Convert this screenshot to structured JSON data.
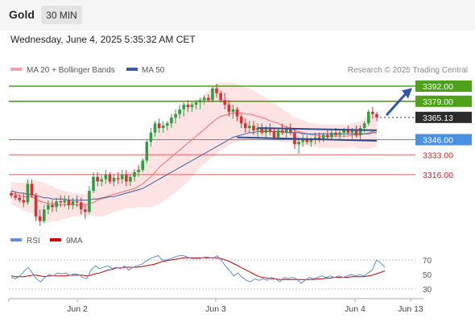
{
  "header": {
    "symbol": "Gold",
    "timeframe": "30 MIN",
    "timestamp": "Wednesday, June 4, 2025 5:35:32 AM CET"
  },
  "legend": {
    "ma20_label": "MA 20 + Bollinger Bands",
    "ma50_label": "MA 50",
    "credit": "Research © 2025 Trading Central"
  },
  "colors": {
    "candle_up": "#2e9e3e",
    "candle_down": "#d93030",
    "ma20": "#f26d6d",
    "ma50": "#35609e",
    "bollinger_fill": "#fcd9d9",
    "resistance": "#4ea21a",
    "pivot": "#4a8ee0",
    "support": "#e06060",
    "channel": "#2d4d8f",
    "rsi": "#5b8fd9",
    "rsi_ma": "#cc0000"
  },
  "chart_data": [
    {
      "type": "candlestick",
      "ylim": [
        3240,
        3400
      ],
      "x_ticks": [
        "Jun 2",
        "Jun 3",
        "Jun 4",
        "Jun 13"
      ],
      "last_price": 3365.13,
      "price_labels": [
        "3392.00",
        "3379.00",
        "3365.13",
        "3346.00",
        "3333.00",
        "3316.00"
      ],
      "levels": [
        {
          "name": "resistance-2",
          "value": 3392.0,
          "kind": "resistance",
          "label": "3392.00"
        },
        {
          "name": "resistance-1",
          "value": 3379.0,
          "kind": "resistance",
          "label": "3379.00"
        },
        {
          "name": "pivot",
          "value": 3346.0,
          "kind": "pivot",
          "label": "3346.00"
        },
        {
          "name": "support-1",
          "value": 3333.0,
          "kind": "support",
          "label": "3333.00"
        },
        {
          "name": "support-2",
          "value": 3316.0,
          "kind": "support",
          "label": "3316.00"
        }
      ],
      "ohlc": [
        [
          3300,
          3302,
          3296,
          3298
        ],
        [
          3298,
          3301,
          3294,
          3296
        ],
        [
          3296,
          3299,
          3292,
          3294
        ],
        [
          3294,
          3300,
          3288,
          3292
        ],
        [
          3292,
          3312,
          3290,
          3308
        ],
        [
          3308,
          3312,
          3296,
          3298
        ],
        [
          3298,
          3300,
          3276,
          3280
        ],
        [
          3280,
          3286,
          3272,
          3276
        ],
        [
          3276,
          3290,
          3274,
          3286
        ],
        [
          3286,
          3294,
          3282,
          3290
        ],
        [
          3290,
          3294,
          3284,
          3288
        ],
        [
          3288,
          3296,
          3284,
          3293
        ],
        [
          3293,
          3298,
          3288,
          3292
        ],
        [
          3292,
          3298,
          3288,
          3294
        ],
        [
          3294,
          3298,
          3286,
          3290
        ],
        [
          3290,
          3296,
          3286,
          3293
        ],
        [
          3293,
          3298,
          3288,
          3292
        ],
        [
          3292,
          3296,
          3282,
          3286
        ],
        [
          3286,
          3290,
          3278,
          3284
        ],
        [
          3284,
          3306,
          3282,
          3302
        ],
        [
          3302,
          3318,
          3300,
          3314
        ],
        [
          3314,
          3318,
          3306,
          3310
        ],
        [
          3310,
          3316,
          3306,
          3312
        ],
        [
          3312,
          3320,
          3308,
          3316
        ],
        [
          3316,
          3318,
          3308,
          3310
        ],
        [
          3310,
          3316,
          3306,
          3313
        ],
        [
          3313,
          3318,
          3308,
          3312
        ],
        [
          3312,
          3320,
          3308,
          3316
        ],
        [
          3316,
          3320,
          3306,
          3310
        ],
        [
          3310,
          3316,
          3306,
          3314
        ],
        [
          3314,
          3320,
          3310,
          3318
        ],
        [
          3318,
          3324,
          3314,
          3320
        ],
        [
          3320,
          3330,
          3318,
          3328
        ],
        [
          3328,
          3346,
          3326,
          3344
        ],
        [
          3344,
          3356,
          3340,
          3352
        ],
        [
          3352,
          3362,
          3348,
          3360
        ],
        [
          3360,
          3364,
          3352,
          3356
        ],
        [
          3356,
          3362,
          3352,
          3358
        ],
        [
          3358,
          3362,
          3354,
          3360
        ],
        [
          3360,
          3368,
          3356,
          3365
        ],
        [
          3365,
          3372,
          3360,
          3368
        ],
        [
          3368,
          3376,
          3364,
          3372
        ],
        [
          3372,
          3378,
          3366,
          3376
        ],
        [
          3376,
          3380,
          3370,
          3374
        ],
        [
          3374,
          3378,
          3370,
          3376
        ],
        [
          3376,
          3380,
          3372,
          3378
        ],
        [
          3378,
          3382,
          3372,
          3380
        ],
        [
          3380,
          3384,
          3376,
          3382
        ],
        [
          3382,
          3385,
          3378,
          3380
        ],
        [
          3380,
          3392,
          3378,
          3390
        ],
        [
          3390,
          3394,
          3382,
          3386
        ],
        [
          3386,
          3388,
          3378,
          3380
        ],
        [
          3380,
          3386,
          3372,
          3376
        ],
        [
          3376,
          3380,
          3366,
          3370
        ],
        [
          3370,
          3376,
          3364,
          3372
        ],
        [
          3372,
          3374,
          3362,
          3366
        ],
        [
          3366,
          3368,
          3356,
          3360
        ],
        [
          3360,
          3364,
          3352,
          3356
        ],
        [
          3356,
          3362,
          3352,
          3358
        ],
        [
          3358,
          3362,
          3350,
          3354
        ],
        [
          3354,
          3360,
          3348,
          3356
        ],
        [
          3356,
          3360,
          3350,
          3352
        ],
        [
          3352,
          3358,
          3348,
          3355
        ],
        [
          3355,
          3360,
          3350,
          3353
        ],
        [
          3353,
          3356,
          3346,
          3348
        ],
        [
          3348,
          3356,
          3346,
          3354
        ],
        [
          3354,
          3360,
          3350,
          3352
        ],
        [
          3352,
          3358,
          3348,
          3356
        ],
        [
          3356,
          3360,
          3350,
          3352
        ],
        [
          3352,
          3356,
          3338,
          3342
        ],
        [
          3342,
          3348,
          3334,
          3344
        ],
        [
          3344,
          3350,
          3340,
          3346
        ],
        [
          3346,
          3350,
          3342,
          3344
        ],
        [
          3344,
          3348,
          3340,
          3346
        ],
        [
          3346,
          3352,
          3342,
          3348
        ],
        [
          3348,
          3352,
          3344,
          3346
        ],
        [
          3346,
          3352,
          3344,
          3350
        ],
        [
          3350,
          3354,
          3346,
          3348
        ],
        [
          3348,
          3354,
          3346,
          3352
        ],
        [
          3352,
          3356,
          3348,
          3350
        ],
        [
          3350,
          3354,
          3346,
          3352
        ],
        [
          3352,
          3356,
          3348,
          3354
        ],
        [
          3354,
          3358,
          3350,
          3352
        ],
        [
          3352,
          3356,
          3346,
          3354
        ],
        [
          3354,
          3358,
          3348,
          3350
        ],
        [
          3350,
          3358,
          3346,
          3356
        ],
        [
          3356,
          3362,
          3352,
          3360
        ],
        [
          3360,
          3372,
          3358,
          3370
        ],
        [
          3370,
          3374,
          3364,
          3368
        ],
        [
          3368,
          3370,
          3362,
          3365.13
        ]
      ],
      "ma20": [
        3300,
        3299,
        3298,
        3297,
        3297,
        3297,
        3295,
        3293,
        3292,
        3291,
        3291,
        3290,
        3290,
        3290,
        3290,
        3290,
        3290,
        3290,
        3290,
        3291,
        3292,
        3294,
        3295,
        3297,
        3298,
        3299,
        3300,
        3301,
        3302,
        3303,
        3304,
        3306,
        3308,
        3311,
        3314,
        3318,
        3322,
        3325,
        3328,
        3331,
        3334,
        3337,
        3340,
        3343,
        3346,
        3349,
        3352,
        3355,
        3358,
        3361,
        3364,
        3366,
        3367,
        3368,
        3369,
        3369,
        3369,
        3368,
        3368,
        3367,
        3366,
        3365,
        3364,
        3362,
        3361,
        3360,
        3358,
        3357,
        3356,
        3354,
        3353,
        3352,
        3351,
        3350,
        3350,
        3349,
        3349,
        3349,
        3349,
        3349,
        3349,
        3349,
        3349,
        3350,
        3350,
        3350,
        3351,
        3352,
        3353,
        3354
      ],
      "ma50": [
        3302,
        3301,
        3300,
        3300,
        3299,
        3299,
        3298,
        3297,
        3296,
        3296,
        3295,
        3295,
        3295,
        3295,
        3294,
        3294,
        3294,
        3294,
        3294,
        3294,
        3295,
        3295,
        3296,
        3296,
        3297,
        3297,
        3298,
        3299,
        3300,
        3301,
        3302,
        3303,
        3304,
        3306,
        3308,
        3310,
        3312,
        3314,
        3316,
        3318,
        3320,
        3322,
        3324,
        3326,
        3328,
        3330,
        3332,
        3334,
        3336,
        3338,
        3340,
        3342,
        3344,
        3346,
        3348,
        3349,
        3350,
        3351,
        3352,
        3352,
        3353,
        3353,
        3353,
        3353,
        3353,
        3353,
        3353,
        3352,
        3352,
        3352,
        3352,
        3351,
        3351,
        3351,
        3351,
        3351,
        3351,
        3351,
        3351,
        3351,
        3351,
        3351,
        3351,
        3351,
        3351,
        3351,
        3351,
        3351,
        3352,
        3352
      ],
      "bb_width": [
        10,
        10,
        11,
        12,
        13,
        14,
        16,
        17,
        17,
        16,
        15,
        14,
        13,
        12,
        11,
        10,
        10,
        9,
        9,
        10,
        12,
        14,
        15,
        16,
        16,
        15,
        15,
        15,
        15,
        16,
        17,
        18,
        20,
        23,
        26,
        29,
        31,
        32,
        33,
        33,
        33,
        33,
        33,
        33,
        32,
        31,
        30,
        30,
        30,
        30,
        30,
        29,
        28,
        27,
        26,
        25,
        24,
        23,
        22,
        21,
        20,
        19,
        18,
        17,
        16,
        15,
        14,
        13,
        12,
        11,
        11,
        11,
        10,
        10,
        10,
        10,
        10,
        10,
        10,
        10,
        10,
        10,
        10,
        10,
        11,
        12,
        13,
        14,
        14,
        14
      ]
    },
    {
      "type": "line",
      "series_labels": [
        "RSI",
        "9MA"
      ],
      "ylim": [
        20,
        85
      ],
      "y_ticks": [
        30,
        50,
        70
      ],
      "reference_lines": [
        70,
        30
      ],
      "rsi": [
        46,
        44,
        48,
        54,
        60,
        52,
        44,
        40,
        46,
        50,
        48,
        52,
        51,
        52,
        49,
        51,
        50,
        46,
        44,
        56,
        62,
        58,
        60,
        62,
        58,
        60,
        58,
        62,
        56,
        60,
        62,
        64,
        68,
        72,
        74,
        76,
        70,
        70,
        72,
        74,
        76,
        76,
        74,
        72,
        72,
        72,
        74,
        74,
        72,
        76,
        70,
        62,
        56,
        48,
        52,
        46,
        42,
        40,
        44,
        42,
        44,
        42,
        46,
        44,
        40,
        46,
        44,
        46,
        44,
        38,
        42,
        46,
        44,
        46,
        48,
        46,
        48,
        46,
        48,
        46,
        48,
        50,
        48,
        50,
        48,
        52,
        56,
        70,
        66,
        60
      ],
      "ma9": [
        48,
        47,
        47,
        47,
        48,
        49,
        49,
        48,
        47,
        48,
        48,
        48,
        48,
        48,
        49,
        49,
        49,
        49,
        48,
        49,
        51,
        52,
        54,
        56,
        57,
        59,
        59,
        60,
        60,
        60,
        60,
        61,
        62,
        63,
        64,
        66,
        68,
        69,
        70,
        71,
        72,
        73,
        73,
        73,
        73,
        73,
        73,
        73,
        73,
        73,
        72,
        70,
        68,
        65,
        62,
        59,
        56,
        53,
        50,
        47,
        46,
        45,
        44,
        44,
        43,
        43,
        43,
        43,
        43,
        43,
        43,
        43,
        43,
        44,
        44,
        45,
        45,
        46,
        46,
        46,
        46,
        47,
        47,
        47,
        47,
        48,
        49,
        51,
        53,
        55
      ]
    }
  ]
}
